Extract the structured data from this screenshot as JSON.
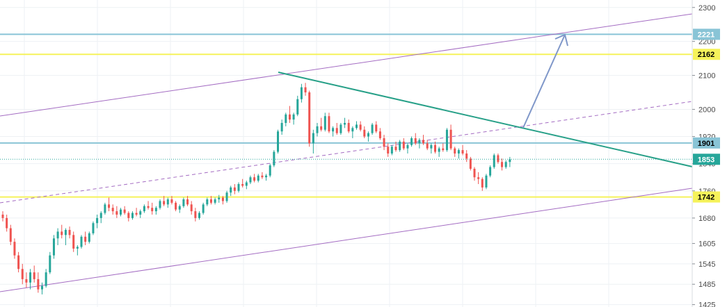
{
  "chart_data": {
    "type": "candlestick",
    "y_axis": {
      "range": [
        1418,
        2322
      ],
      "ticks": [
        {
          "label": "2300",
          "value": 2300
        },
        {
          "label": "2200",
          "value": 2200
        },
        {
          "label": "2100",
          "value": 2100
        },
        {
          "label": "2000",
          "value": 2000
        },
        {
          "label": "1920",
          "value": 1920
        },
        {
          "label": "1840",
          "value": 1840
        },
        {
          "label": "1760",
          "value": 1760
        },
        {
          "label": "1680",
          "value": 1680
        },
        {
          "label": "1605",
          "value": 1605
        },
        {
          "label": "1545",
          "value": 1545
        },
        {
          "label": "1485",
          "value": 1485
        },
        {
          "label": "1425",
          "value": 1425
        }
      ]
    },
    "grid": true,
    "horizontal_levels": [
      {
        "label": "2221",
        "value": 2221,
        "color": "#89c4d6",
        "text_color": "#ffffff"
      },
      {
        "label": "2162",
        "value": 2162,
        "color": "#f5f25a",
        "text_color": "#000000"
      },
      {
        "label": "1901",
        "value": 1901,
        "color": "#89c4d6",
        "text_color": "#000000"
      },
      {
        "label": "1742",
        "value": 1742,
        "color": "#f5f25a",
        "text_color": "#000000"
      }
    ],
    "current_price": {
      "label": "1853",
      "value": 1853,
      "color": "#26a69a",
      "text_color": "#ffffff"
    },
    "candle_colors": {
      "up": "#26a69a",
      "down": "#ef5350"
    },
    "candles": [
      [
        1690,
        1700,
        1670,
        1680
      ],
      [
        1680,
        1690,
        1640,
        1650
      ],
      [
        1650,
        1660,
        1600,
        1610
      ],
      [
        1610,
        1620,
        1560,
        1570
      ],
      [
        1570,
        1580,
        1520,
        1530
      ],
      [
        1530,
        1545,
        1485,
        1500
      ],
      [
        1500,
        1520,
        1475,
        1490
      ],
      [
        1490,
        1530,
        1470,
        1520
      ],
      [
        1520,
        1540,
        1490,
        1500
      ],
      [
        1500,
        1520,
        1460,
        1470
      ],
      [
        1470,
        1490,
        1455,
        1480
      ],
      [
        1480,
        1530,
        1475,
        1520
      ],
      [
        1520,
        1580,
        1515,
        1570
      ],
      [
        1570,
        1630,
        1560,
        1620
      ],
      [
        1620,
        1650,
        1600,
        1640
      ],
      [
        1640,
        1660,
        1620,
        1630
      ],
      [
        1630,
        1650,
        1600,
        1645
      ],
      [
        1645,
        1655,
        1620,
        1630
      ],
      [
        1630,
        1640,
        1580,
        1590
      ],
      [
        1590,
        1600,
        1570,
        1595
      ],
      [
        1595,
        1630,
        1590,
        1625
      ],
      [
        1625,
        1640,
        1600,
        1610
      ],
      [
        1610,
        1640,
        1605,
        1635
      ],
      [
        1635,
        1670,
        1630,
        1665
      ],
      [
        1665,
        1690,
        1650,
        1680
      ],
      [
        1680,
        1700,
        1665,
        1695
      ],
      [
        1695,
        1725,
        1690,
        1720
      ],
      [
        1720,
        1740,
        1700,
        1710
      ],
      [
        1710,
        1720,
        1690,
        1700
      ],
      [
        1700,
        1715,
        1680,
        1690
      ],
      [
        1690,
        1710,
        1685,
        1705
      ],
      [
        1705,
        1715,
        1690,
        1695
      ],
      [
        1695,
        1700,
        1670,
        1680
      ],
      [
        1680,
        1700,
        1675,
        1695
      ],
      [
        1695,
        1710,
        1685,
        1690
      ],
      [
        1690,
        1705,
        1680,
        1700
      ],
      [
        1700,
        1720,
        1695,
        1715
      ],
      [
        1715,
        1730,
        1705,
        1710
      ],
      [
        1710,
        1725,
        1690,
        1700
      ],
      [
        1700,
        1715,
        1690,
        1710
      ],
      [
        1710,
        1735,
        1705,
        1730
      ],
      [
        1730,
        1745,
        1715,
        1720
      ],
      [
        1720,
        1740,
        1710,
        1735
      ],
      [
        1735,
        1745,
        1720,
        1725
      ],
      [
        1725,
        1730,
        1700,
        1705
      ],
      [
        1705,
        1720,
        1695,
        1715
      ],
      [
        1715,
        1740,
        1710,
        1735
      ],
      [
        1735,
        1745,
        1715,
        1720
      ],
      [
        1720,
        1730,
        1690,
        1700
      ],
      [
        1700,
        1710,
        1670,
        1680
      ],
      [
        1680,
        1700,
        1675,
        1695
      ],
      [
        1695,
        1725,
        1690,
        1720
      ],
      [
        1720,
        1740,
        1715,
        1735
      ],
      [
        1735,
        1745,
        1720,
        1725
      ],
      [
        1725,
        1740,
        1720,
        1735
      ],
      [
        1735,
        1748,
        1725,
        1740
      ],
      [
        1740,
        1745,
        1720,
        1730
      ],
      [
        1730,
        1760,
        1725,
        1755
      ],
      [
        1755,
        1775,
        1745,
        1770
      ],
      [
        1770,
        1780,
        1750,
        1760
      ],
      [
        1760,
        1785,
        1755,
        1780
      ],
      [
        1780,
        1795,
        1770,
        1775
      ],
      [
        1775,
        1790,
        1765,
        1785
      ],
      [
        1785,
        1805,
        1780,
        1800
      ],
      [
        1800,
        1810,
        1785,
        1790
      ],
      [
        1790,
        1810,
        1785,
        1805
      ],
      [
        1805,
        1815,
        1795,
        1800
      ],
      [
        1800,
        1810,
        1790,
        1805
      ],
      [
        1805,
        1840,
        1800,
        1835
      ],
      [
        1835,
        1880,
        1830,
        1875
      ],
      [
        1875,
        1940,
        1870,
        1935
      ],
      [
        1935,
        1970,
        1925,
        1960
      ],
      [
        1960,
        1990,
        1950,
        1985
      ],
      [
        1985,
        2010,
        1960,
        1970
      ],
      [
        1970,
        1990,
        1955,
        1985
      ],
      [
        1985,
        2040,
        1980,
        2030
      ],
      [
        2030,
        2075,
        2020,
        2065
      ],
      [
        2065,
        2078,
        2040,
        2050
      ],
      [
        2050,
        2055,
        1890,
        1900
      ],
      [
        1900,
        1940,
        1870,
        1930
      ],
      [
        1930,
        1960,
        1920,
        1950
      ],
      [
        1950,
        1975,
        1935,
        1940
      ],
      [
        1940,
        1990,
        1935,
        1980
      ],
      [
        1980,
        1990,
        1930,
        1935
      ],
      [
        1935,
        1950,
        1920,
        1945
      ],
      [
        1945,
        1960,
        1925,
        1930
      ],
      [
        1930,
        1960,
        1925,
        1955
      ],
      [
        1955,
        1975,
        1945,
        1960
      ],
      [
        1960,
        1970,
        1930,
        1935
      ],
      [
        1935,
        1950,
        1915,
        1945
      ],
      [
        1945,
        1965,
        1940,
        1955
      ],
      [
        1955,
        1965,
        1935,
        1940
      ],
      [
        1940,
        1950,
        1915,
        1920
      ],
      [
        1920,
        1935,
        1905,
        1930
      ],
      [
        1930,
        1960,
        1925,
        1955
      ],
      [
        1955,
        1965,
        1930,
        1935
      ],
      [
        1935,
        1945,
        1910,
        1915
      ],
      [
        1915,
        1925,
        1880,
        1890
      ],
      [
        1890,
        1900,
        1860,
        1870
      ],
      [
        1870,
        1895,
        1865,
        1890
      ],
      [
        1890,
        1905,
        1875,
        1880
      ],
      [
        1880,
        1910,
        1875,
        1905
      ],
      [
        1905,
        1915,
        1880,
        1885
      ],
      [
        1885,
        1900,
        1870,
        1895
      ],
      [
        1895,
        1920,
        1890,
        1915
      ],
      [
        1915,
        1930,
        1895,
        1900
      ],
      [
        1900,
        1915,
        1885,
        1910
      ],
      [
        1910,
        1925,
        1895,
        1900
      ],
      [
        1900,
        1910,
        1880,
        1885
      ],
      [
        1885,
        1900,
        1870,
        1895
      ],
      [
        1895,
        1905,
        1870,
        1875
      ],
      [
        1875,
        1890,
        1860,
        1885
      ],
      [
        1885,
        1900,
        1875,
        1880
      ],
      [
        1880,
        1945,
        1875,
        1940
      ],
      [
        1940,
        1955,
        1880,
        1885
      ],
      [
        1885,
        1890,
        1860,
        1870
      ],
      [
        1870,
        1885,
        1855,
        1880
      ],
      [
        1880,
        1895,
        1865,
        1870
      ],
      [
        1870,
        1880,
        1845,
        1855
      ],
      [
        1855,
        1860,
        1820,
        1825
      ],
      [
        1825,
        1830,
        1790,
        1800
      ],
      [
        1800,
        1815,
        1780,
        1795
      ],
      [
        1795,
        1800,
        1760,
        1770
      ],
      [
        1770,
        1810,
        1765,
        1805
      ],
      [
        1805,
        1835,
        1800,
        1830
      ],
      [
        1830,
        1870,
        1825,
        1865
      ],
      [
        1865,
        1870,
        1840,
        1845
      ],
      [
        1845,
        1855,
        1820,
        1830
      ],
      [
        1830,
        1850,
        1825,
        1845
      ],
      [
        1845,
        1860,
        1830,
        1853
      ]
    ]
  }
}
